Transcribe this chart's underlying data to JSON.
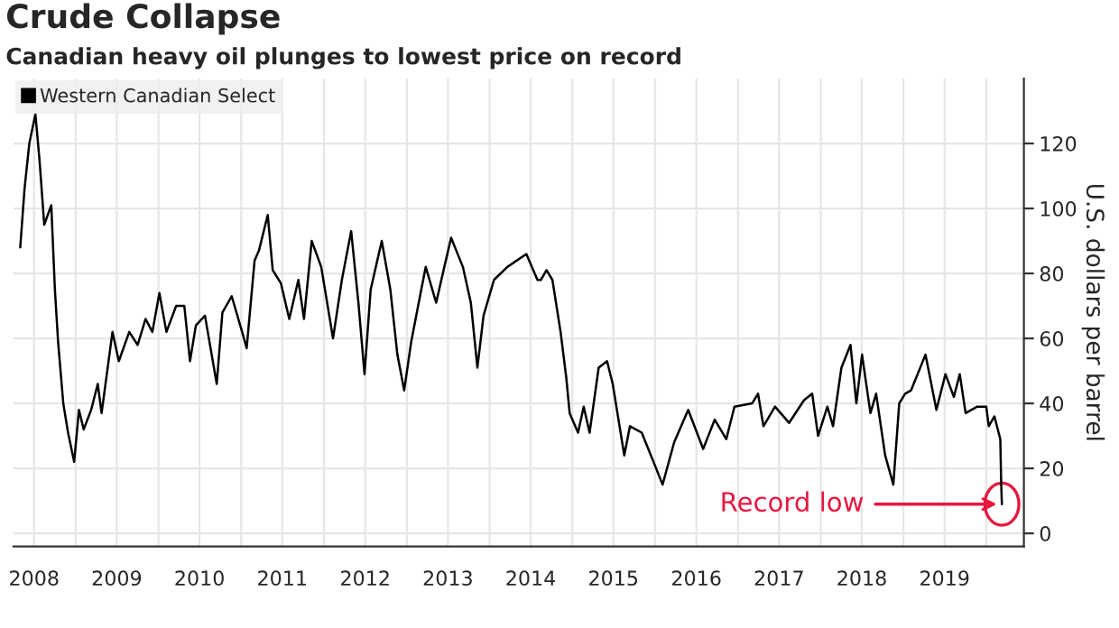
{
  "chart_data": {
    "type": "line",
    "title": "Crude Collapse",
    "subtitle": "Canadian heavy oil plunges to lowest price on record",
    "ylabel": "U.S. dollars per barrel",
    "x": [
      "2008-05-01",
      "2008-05-20",
      "2008-06-10",
      "2008-07-07",
      "2008-07-25",
      "2008-08-15",
      "2008-09-15",
      "2008-10-01",
      "2008-10-15",
      "2008-11-07",
      "2008-11-28",
      "2008-12-25",
      "2009-01-15",
      "2009-02-05",
      "2009-03-10",
      "2009-04-08",
      "2009-04-25",
      "2009-06-12",
      "2009-07-10",
      "2009-08-25",
      "2009-10-01",
      "2009-11-05",
      "2009-12-05",
      "2010-01-05",
      "2010-02-05",
      "2010-03-20",
      "2010-04-25",
      "2010-05-20",
      "2010-06-15",
      "2010-07-25",
      "2010-09-15",
      "2010-10-10",
      "2010-11-20",
      "2011-01-05",
      "2011-01-25",
      "2011-03-01",
      "2011-03-20",
      "2011-04-28",
      "2011-05-20",
      "2011-06-25",
      "2011-08-01",
      "2011-09-10",
      "2011-10-05",
      "2011-11-08",
      "2011-12-20",
      "2012-02-10",
      "2012-03-20",
      "2012-04-30",
      "2012-06-01",
      "2012-06-28",
      "2012-07-25",
      "2012-09-12",
      "2012-10-20",
      "2012-11-20",
      "2012-12-20",
      "2013-01-20",
      "2013-02-25",
      "2013-03-25",
      "2013-05-10",
      "2013-06-15",
      "2013-07-15",
      "2013-09-05",
      "2013-10-10",
      "2013-11-08",
      "2013-12-05",
      "2014-01-20",
      "2014-03-20",
      "2014-06-12",
      "2014-07-31",
      "2014-08-15",
      "2014-09-09",
      "2014-10-05",
      "2014-11-10",
      "2014-12-05",
      "2014-12-20",
      "2015-01-26",
      "2015-02-20",
      "2015-03-18",
      "2015-04-27",
      "2015-06-03",
      "2015-06-28",
      "2015-08-18",
      "2015-09-12",
      "2015-11-03",
      "2015-12-25",
      "2016-02-03",
      "2016-03-25",
      "2016-05-26",
      "2016-07-31",
      "2016-09-20",
      "2016-11-10",
      "2016-12-16",
      "2017-03-04",
      "2017-03-30",
      "2017-04-23",
      "2017-06-13",
      "2017-08-14",
      "2017-10-19",
      "2017-11-24",
      "2017-12-20",
      "2018-01-30",
      "2018-02-24",
      "2018-04-02",
      "2018-05-12",
      "2018-06-07",
      "2018-07-02",
      "2018-08-08",
      "2018-09-02",
      "2018-10-12",
      "2018-11-17",
      "2018-12-13",
      "2019-01-08",
      "2019-02-03",
      "2019-04-08",
      "2019-05-26",
      "2019-07-05",
      "2019-08-11",
      "2019-09-06",
      "2019-10-02",
      "2019-11-22",
      "2020-01-01",
      "2020-01-12",
      "2020-02-06",
      "2020-03-03",
      "2020-03-07",
      "2020-03-10"
    ],
    "series": [
      {
        "name": "Western Canadian Select",
        "color": "#000000",
        "values": [
          88,
          106,
          120,
          129,
          115,
          95,
          101,
          75,
          59,
          40,
          31,
          22,
          38,
          32,
          38,
          46,
          37,
          62,
          53,
          62,
          58,
          66,
          62,
          74,
          62,
          70,
          70,
          53,
          64,
          67,
          46,
          68,
          73,
          62,
          57,
          84,
          87,
          98,
          81,
          77,
          66,
          78,
          66,
          90,
          82,
          60,
          78,
          93,
          71,
          49,
          75,
          90,
          75,
          55,
          44,
          59,
          72,
          82,
          71,
          82,
          91,
          82,
          71,
          51,
          67,
          78,
          82,
          86,
          78,
          78,
          81,
          78,
          62,
          48,
          37,
          31,
          39,
          31,
          51,
          53,
          46,
          24,
          33,
          31,
          22,
          15,
          28,
          38,
          26,
          35,
          29,
          39,
          40,
          43,
          33,
          39,
          34,
          41,
          43,
          30,
          39,
          33,
          51,
          58,
          40,
          55,
          37,
          43,
          24,
          15,
          40,
          43,
          44,
          55,
          38,
          49,
          42,
          49,
          37,
          39,
          39,
          33,
          36,
          29,
          15,
          9
        ]
      }
    ],
    "xlim": [
      "2008-04-01",
      "2020-06-15"
    ],
    "xticks": [
      {
        "value": "2008-07-01",
        "label": "2008"
      },
      {
        "value": "2009-01-01",
        "label": null
      },
      {
        "value": "2009-07-01",
        "label": "2009"
      },
      {
        "value": "2010-01-01",
        "label": null
      },
      {
        "value": "2010-07-01",
        "label": "2010"
      },
      {
        "value": "2011-01-01",
        "label": null
      },
      {
        "value": "2011-07-01",
        "label": "2011"
      },
      {
        "value": "2012-01-01",
        "label": null
      },
      {
        "value": "2012-07-01",
        "label": "2012"
      },
      {
        "value": "2013-01-01",
        "label": null
      },
      {
        "value": "2013-07-01",
        "label": "2013"
      },
      {
        "value": "2014-01-01",
        "label": null
      },
      {
        "value": "2014-07-01",
        "label": "2014"
      },
      {
        "value": "2015-01-01",
        "label": null
      },
      {
        "value": "2015-07-01",
        "label": "2015"
      },
      {
        "value": "2016-01-01",
        "label": null
      },
      {
        "value": "2016-07-01",
        "label": "2016"
      },
      {
        "value": "2017-01-01",
        "label": null
      },
      {
        "value": "2017-07-01",
        "label": "2017"
      },
      {
        "value": "2018-01-01",
        "label": null
      },
      {
        "value": "2018-07-01",
        "label": "2018"
      },
      {
        "value": "2019-01-01",
        "label": null
      },
      {
        "value": "2019-07-01",
        "label": "2019"
      },
      {
        "value": "2020-01-01",
        "label": null
      }
    ],
    "ylim": [
      -4,
      140
    ],
    "yticks": [
      0,
      20,
      40,
      60,
      80,
      100,
      120
    ],
    "annotations": [
      {
        "text": "Record low",
        "x": "2020-03-10",
        "y": 9
      }
    ],
    "grid": true,
    "legend": "top left",
    "marker": "none",
    "line_style": "solid"
  }
}
